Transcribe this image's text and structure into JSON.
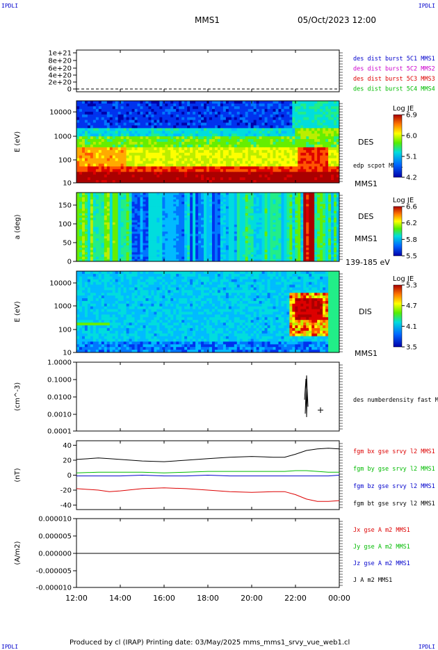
{
  "header": {
    "corner_left": "IPDLI",
    "corner_right": "IPDLI",
    "spacecraft": "MMS1",
    "datetime": "05/Oct/2023 12:00"
  },
  "footer": {
    "text": "Produced by cl (IRAP)   Printing date: 03/May/2025   mms_mms1_srvy_vue_web1.cl",
    "corner_left": "IPDLI",
    "corner_right": "IPDLI"
  },
  "colors": {
    "blue": "#0000cc",
    "magenta": "#cc00cc",
    "red": "#dd0000",
    "green": "#00bb00",
    "black": "#000000"
  },
  "chart_data": [
    {
      "type": "line",
      "name": "burst-panel",
      "x_range": [
        "12:00",
        "00:00"
      ],
      "y_ticks": [
        "1e+21",
        "8e+20",
        "6e+20",
        "4e+20",
        "2e+20",
        "0"
      ],
      "legend": [
        {
          "label": "des dist burst 5C1 MMS1",
          "color": "#0000cc"
        },
        {
          "label": "des dist burst 5C2 MMS2",
          "color": "#cc00cc"
        },
        {
          "label": "des dist burst 5C3 MMS3",
          "color": "#dd0000"
        },
        {
          "label": "des dist burst 5C4 MMS4",
          "color": "#00bb00"
        }
      ]
    },
    {
      "type": "heatmap",
      "name": "des-energy-spectrogram",
      "ylabel": "E (eV)",
      "yscale": "log",
      "y_ticks": [
        "10000",
        "1000",
        "100",
        "10"
      ],
      "right_labels": [
        "DES",
        "MMS1"
      ],
      "overlay_label": "edp scpot MMS1",
      "colorbar": {
        "title": "Log JE",
        "ticks": [
          "6.9",
          "6.0",
          "5.1",
          "4.2"
        ]
      }
    },
    {
      "type": "heatmap",
      "name": "des-pitch-angle",
      "ylabel": "a (deg)",
      "y_ticks": [
        "150",
        "100",
        "50",
        "0"
      ],
      "right_labels": [
        "DES",
        "MMS1",
        "139-185 eV"
      ],
      "colorbar": {
        "title": "Log JE",
        "ticks": [
          "6.6",
          "6.2",
          "5.8",
          "5.5"
        ]
      }
    },
    {
      "type": "heatmap",
      "name": "dis-energy-spectrogram",
      "ylabel": "E (eV)",
      "yscale": "log",
      "y_ticks": [
        "10000",
        "1000",
        "100",
        "10"
      ],
      "right_labels": [
        "DIS",
        "MMS1"
      ],
      "colorbar": {
        "title": "Log JE",
        "ticks": [
          "5.3",
          "4.7",
          "4.1",
          "3.5"
        ]
      }
    },
    {
      "type": "line",
      "name": "number-density",
      "ylabel": "(cm^-3)",
      "yscale": "log",
      "y_ticks": [
        "1.0000",
        "0.1000",
        "0.0100",
        "0.0010",
        "0.0001"
      ],
      "legend": [
        {
          "label": "des numberdensity fast M",
          "color": "#000000"
        }
      ]
    },
    {
      "type": "line",
      "name": "magnetic-field",
      "ylabel": "(nT)",
      "y_ticks": [
        "40",
        "20",
        "0",
        "-20",
        "-40"
      ],
      "ylim": [
        -46,
        46
      ],
      "legend": [
        {
          "label": "fgm bx gse srvy l2 MMS1",
          "color": "#dd0000"
        },
        {
          "label": "fgm by gse srvy l2 MMS1",
          "color": "#00bb00"
        },
        {
          "label": "fgm bz gse srvy l2 MMS1",
          "color": "#0000cc"
        },
        {
          "label": "fgm bt gse srvy l2 MMS1",
          "color": "#000000"
        }
      ],
      "x_hours": [
        0,
        1,
        1.5,
        2,
        3,
        4,
        5,
        6,
        7,
        8,
        9,
        9.5,
        10,
        10.5,
        11,
        11.5,
        12
      ],
      "series": [
        {
          "name": "bt",
          "values": [
            21,
            23,
            22,
            21,
            19,
            18,
            20,
            22,
            24,
            25,
            24,
            24,
            28,
            33,
            35,
            36,
            35
          ]
        },
        {
          "name": "by",
          "values": [
            3,
            4,
            4,
            4,
            4,
            3,
            4,
            5,
            5,
            5,
            5,
            5,
            6,
            6,
            5,
            4,
            4
          ]
        },
        {
          "name": "bz",
          "values": [
            -1,
            -1,
            -1,
            -1,
            0,
            -1,
            -1,
            0,
            -1,
            -1,
            -1,
            -1,
            -1,
            -1,
            -1,
            -1,
            0
          ]
        },
        {
          "name": "bx",
          "values": [
            -18,
            -20,
            -22,
            -21,
            -18,
            -17,
            -18,
            -20,
            -22,
            -23,
            -22,
            -22,
            -26,
            -32,
            -35,
            -35,
            -34
          ]
        }
      ]
    },
    {
      "type": "line",
      "name": "current-density",
      "ylabel": "(A/m2)",
      "y_ticks": [
        "0.000010",
        "0.000005",
        "0.000000",
        "-0.000005",
        "-0.000010"
      ],
      "legend": [
        {
          "label": "Jx gse A m2 MMS1",
          "color": "#dd0000"
        },
        {
          "label": "Jy gse A m2 MMS1",
          "color": "#00bb00"
        },
        {
          "label": "Jz gse A m2 MMS1",
          "color": "#0000cc"
        },
        {
          "label": "J A m2 MMS1",
          "color": "#000000"
        }
      ],
      "x_ticks": [
        "12:00",
        "14:00",
        "16:00",
        "18:00",
        "20:00",
        "22:00",
        "00:00"
      ]
    }
  ]
}
